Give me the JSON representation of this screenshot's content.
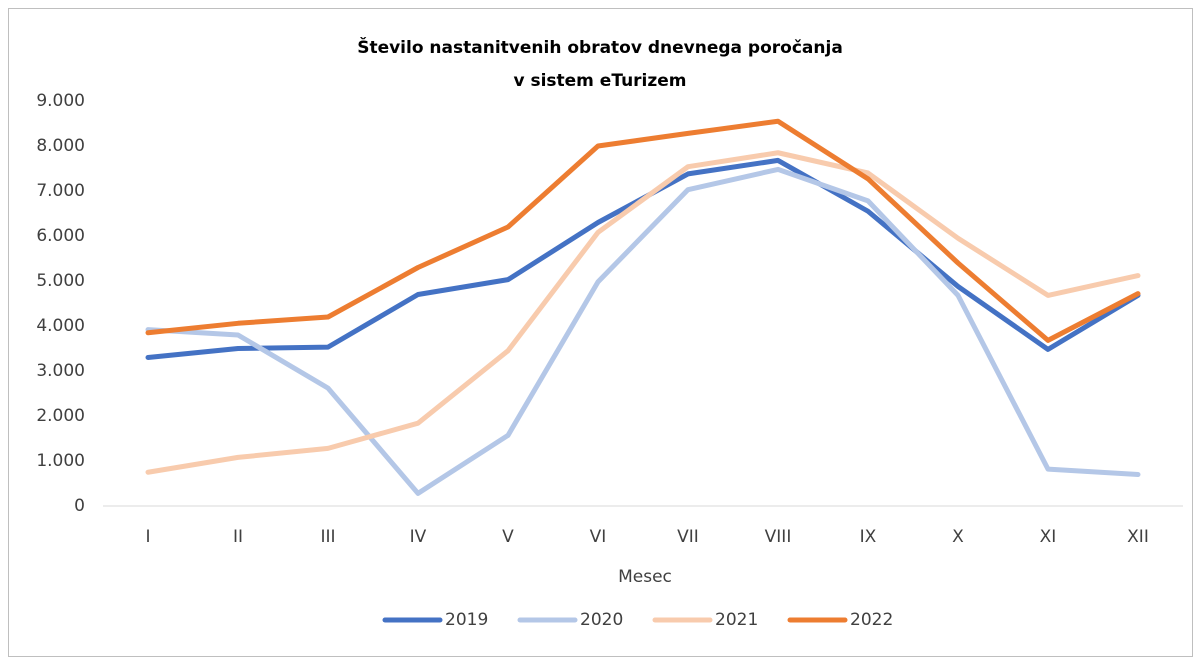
{
  "chart_data": {
    "type": "line",
    "title": [
      "Število nastanitvenih obratov dnevnega poročanja",
      "v sistem eTurizem"
    ],
    "x_label": "Mesec",
    "categories": [
      "I",
      "II",
      "III",
      "IV",
      "V",
      "VI",
      "VII",
      "VIII",
      "IX",
      "X",
      "XI",
      "XII"
    ],
    "series": [
      {
        "name": "2019",
        "color": "#4472c4",
        "values": [
          3300,
          3500,
          3530,
          4700,
          5030,
          6300,
          7380,
          7680,
          6550,
          4880,
          3480,
          4680
        ]
      },
      {
        "name": "2020",
        "color": "#b4c7e7",
        "values": [
          3920,
          3800,
          2620,
          280,
          1570,
          4980,
          7030,
          7480,
          6780,
          4680,
          820,
          700
        ]
      },
      {
        "name": "2021",
        "color": "#f8cbad",
        "values": [
          750,
          1080,
          1280,
          1840,
          3450,
          6080,
          7540,
          7850,
          7400,
          5950,
          4680,
          5120
        ]
      },
      {
        "name": "2022",
        "color": "#ed7d31",
        "values": [
          3850,
          4060,
          4200,
          5300,
          6200,
          8000,
          8280,
          8550,
          7270,
          5400,
          3680,
          4720
        ]
      }
    ],
    "ylim": [
      0,
      9000
    ],
    "yticks": [
      0,
      {
        "value": 1000,
        "label": "1.000"
      },
      {
        "value": 2000,
        "label": "2.000"
      },
      {
        "value": 3000,
        "label": "3.000"
      },
      {
        "value": 4000,
        "label": "4.000"
      },
      {
        "value": 5000,
        "label": "5.000"
      },
      {
        "value": 6000,
        "label": "6.000"
      },
      {
        "value": 7000,
        "label": "7.000"
      },
      {
        "value": 8000,
        "label": "8.000"
      },
      {
        "value": 9000,
        "label": "9.000"
      }
    ],
    "grid": false,
    "legend": "bottom"
  }
}
